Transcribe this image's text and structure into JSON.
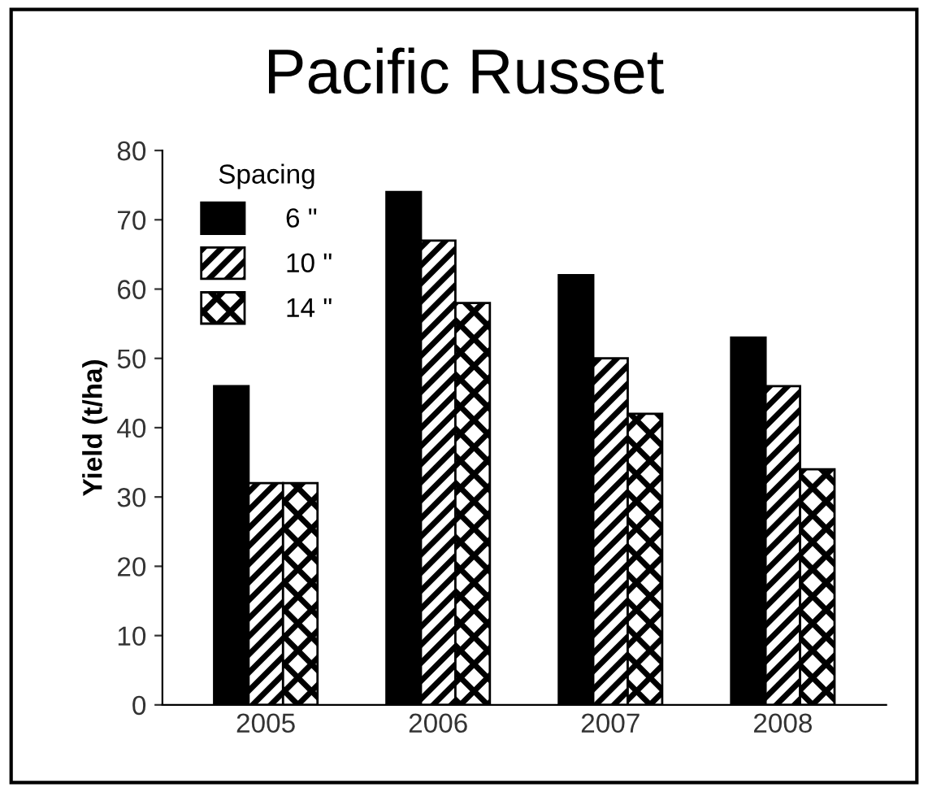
{
  "chart_data": {
    "type": "bar",
    "title": "Pacific Russet",
    "ylabel": "Yield (t/ha)",
    "legend_title": "Spacing",
    "categories": [
      "2005",
      "2006",
      "2007",
      "2008"
    ],
    "series": [
      {
        "name": "6 \"",
        "color": "#000000",
        "values": [
          46,
          74,
          62,
          53
        ]
      },
      {
        "name": "10 \"",
        "color": "#000000",
        "values": [
          32,
          67,
          50,
          46
        ]
      },
      {
        "name": "14 \"",
        "color": "#000000",
        "values": [
          32,
          58,
          42,
          34
        ]
      }
    ],
    "ylim": [
      0,
      80
    ],
    "yticks": [
      0,
      10,
      20,
      30,
      40,
      50,
      60,
      70,
      80
    ],
    "grid": false,
    "legend": "top left"
  }
}
